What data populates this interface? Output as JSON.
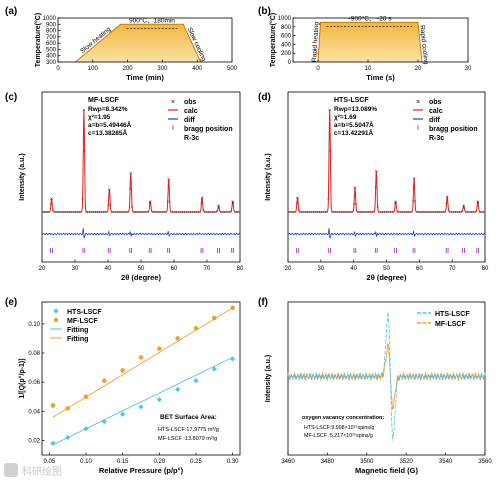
{
  "chart_data": [
    {
      "id": "a",
      "type": "area",
      "panel_label": "(a)",
      "xlabel": "Time (min)",
      "ylabel": "Temperature(°C)",
      "xlim": [
        0,
        500
      ],
      "ylim": [
        300,
        1000
      ],
      "xticks": [
        0,
        100,
        200,
        300,
        400,
        500
      ],
      "yticks": [
        300,
        400,
        500,
        600,
        700,
        800,
        900,
        1000
      ],
      "points": [
        [
          50,
          300
        ],
        [
          180,
          900
        ],
        [
          360,
          900
        ],
        [
          410,
          300
        ]
      ],
      "annotations": {
        "left": "Slow heating",
        "top": "900°C、180min",
        "right": "Slow cooling"
      }
    },
    {
      "id": "b",
      "type": "area",
      "panel_label": "(b)",
      "xlabel": "Time (s)",
      "ylabel": "Temperature(°C)",
      "xlim": [
        -5,
        30
      ],
      "ylim": [
        0,
        1000
      ],
      "xticks": [
        0,
        10,
        20,
        30
      ],
      "yticks": [
        0,
        200,
        400,
        600,
        800,
        1000
      ],
      "points": [
        [
          0,
          0
        ],
        [
          0.5,
          900
        ],
        [
          20,
          900
        ],
        [
          20.8,
          0
        ]
      ],
      "annotations": {
        "left": "Rapid heating",
        "top": "~900°C、~20 s",
        "right": "Rapid cooling"
      }
    },
    {
      "id": "c",
      "type": "line",
      "panel_label": "(c)",
      "xlabel": "2θ (degree)",
      "ylabel": "Intensity (a.u.)",
      "xlim": [
        20,
        80
      ],
      "xticks": [
        20,
        30,
        40,
        50,
        60,
        70,
        80
      ],
      "sample": "MF-LSCF",
      "stats": [
        "Rwp=8.342%",
        "χ²=1.95",
        "a=b=5.49446Å",
        "c=13.38285Å"
      ],
      "peaks": [
        [
          22.9,
          0.13
        ],
        [
          32.7,
          1.0
        ],
        [
          40.4,
          0.22
        ],
        [
          46.9,
          0.38
        ],
        [
          52.8,
          0.1
        ],
        [
          58.4,
          0.32
        ],
        [
          68.5,
          0.14
        ],
        [
          73.5,
          0.06
        ],
        [
          77.8,
          0.1
        ]
      ],
      "legend": [
        "obs",
        "calc",
        "diff",
        "bragg position",
        "R-3c"
      ]
    },
    {
      "id": "d",
      "type": "line",
      "panel_label": "(d)",
      "xlabel": "2θ (degree)",
      "ylabel": "Intensity (a.u.)",
      "xlim": [
        20,
        80
      ],
      "xticks": [
        20,
        30,
        40,
        50,
        60,
        70,
        80
      ],
      "sample": "HTS-LSCF",
      "stats": [
        "Rwp=13.089%",
        "χ²=1.69",
        "a=b=5.5047Å",
        "c=13.42291Å"
      ],
      "peaks": [
        [
          22.9,
          0.14
        ],
        [
          32.7,
          1.0
        ],
        [
          40.4,
          0.24
        ],
        [
          46.9,
          0.4
        ],
        [
          52.8,
          0.1
        ],
        [
          58.4,
          0.33
        ],
        [
          68.5,
          0.15
        ],
        [
          73.5,
          0.06
        ],
        [
          77.8,
          0.1
        ]
      ],
      "legend": [
        "obs",
        "calc",
        "diff",
        "bragg position",
        "R-3c"
      ]
    },
    {
      "id": "e",
      "type": "scatter",
      "panel_label": "(e)",
      "xlabel": "Relative Pressure (p/p°)",
      "ylabel": "1/[Q(p°/p-1)]",
      "xlim": [
        0.04,
        0.31
      ],
      "ylim": [
        0.01,
        0.115
      ],
      "xticks": [
        0.05,
        0.1,
        0.15,
        0.2,
        0.25,
        0.3
      ],
      "yticks": [
        0.02,
        0.04,
        0.06,
        0.08,
        0.1
      ],
      "series": [
        {
          "name": "HTS-LSCF",
          "color": "#56c1ee",
          "x": [
            0.055,
            0.075,
            0.1,
            0.125,
            0.15,
            0.175,
            0.2,
            0.225,
            0.25,
            0.275,
            0.3
          ],
          "y": [
            0.018,
            0.022,
            0.028,
            0.033,
            0.038,
            0.043,
            0.048,
            0.055,
            0.061,
            0.069,
            0.076
          ],
          "fit": [
            [
              0.055,
              0.017
            ],
            [
              0.3,
              0.077
            ]
          ]
        },
        {
          "name": "MF-LSCF",
          "color": "#f0a030",
          "x": [
            0.055,
            0.075,
            0.1,
            0.125,
            0.15,
            0.175,
            0.2,
            0.225,
            0.25,
            0.275,
            0.3
          ],
          "y": [
            0.044,
            0.042,
            0.05,
            0.061,
            0.068,
            0.077,
            0.083,
            0.09,
            0.097,
            0.104,
            0.111
          ],
          "fit": [
            [
              0.055,
              0.036
            ],
            [
              0.3,
              0.111
            ]
          ]
        }
      ],
      "fitting_labels": [
        "Fitting",
        "Fitting"
      ],
      "bet_title": "BET Surface Area:",
      "bet_values": [
        "HTS-LSCF:17.9775 m²/g",
        "MF-LSCF :13.8079 m²/g"
      ]
    },
    {
      "id": "f",
      "type": "line",
      "panel_label": "(f)",
      "xlabel": "Magnetic field (G)",
      "ylabel": "Intensity (a.u.)",
      "xlim": [
        3460,
        3560
      ],
      "xticks": [
        3460,
        3480,
        3500,
        3520,
        3540,
        3560
      ],
      "series": [
        {
          "name": "HTS-LSCF",
          "color": "#56c1ee",
          "center": 3512,
          "amplitude": 1.0
        },
        {
          "name": "MF-LSCF",
          "color": "#f0a030",
          "center": 3512,
          "amplitude": 0.5
        }
      ],
      "oxygen_title": "oxygen vacancy concentration:",
      "oxygen_values": [
        "HTS-LSCF:9.998×10¹⁵spins/g",
        "MF-LSCF :5.217×10¹⁵spins/g"
      ]
    }
  ],
  "watermark": "科研绘图"
}
